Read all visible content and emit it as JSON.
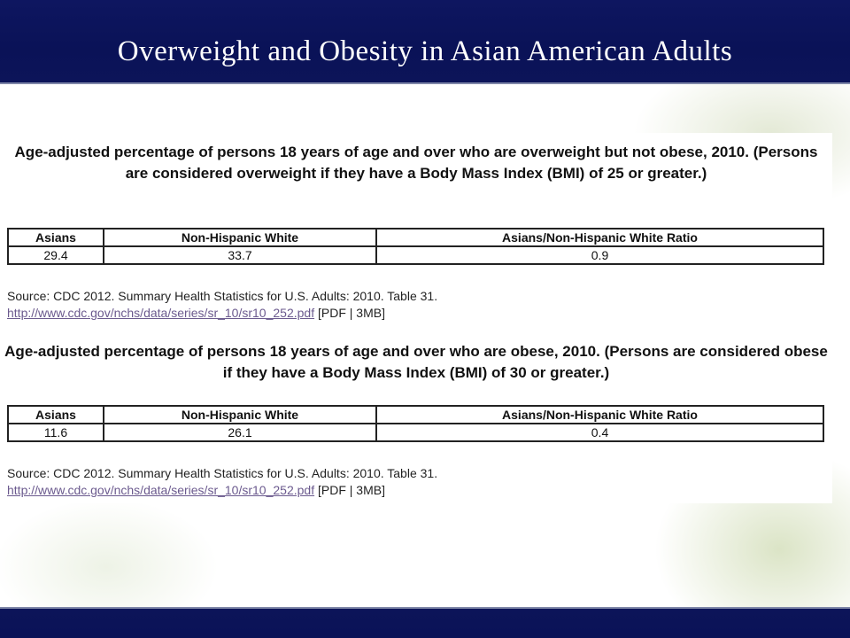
{
  "slide": {
    "title": "Overweight and Obesity in Asian American Adults"
  },
  "sections": [
    {
      "heading": "Age-adjusted percentage of persons 18 years of age and over who are overweight but not obese, 2010. (Persons are considered overweight if they have a Body Mass Index (BMI) of 25 or greater.)",
      "table": {
        "headers": [
          "Asians",
          "Non-Hispanic White",
          "Asians/Non-Hispanic White Ratio"
        ],
        "row": [
          "29.4",
          "33.7",
          "0.9"
        ]
      },
      "source_text": "Source:  CDC 2012. Summary Health Statistics for U.S. Adults: 2010. Table 31.",
      "link_text": "http://www.cdc.gov/nchs/data/series/sr_10/sr10_252.pdf",
      "link_suffix": " [PDF | 3MB]"
    },
    {
      "heading": "Age-adjusted percentage of persons 18 years of age and over who are obese, 2010. (Persons are considered obese if they have a Body Mass Index (BMI) of 30 or greater.)",
      "table": {
        "headers": [
          "Asians",
          "Non-Hispanic White",
          "Asians/Non-Hispanic White Ratio"
        ],
        "row": [
          "11.6",
          "26.1",
          "0.4"
        ]
      },
      "source_text": "Source:  CDC 2012. Summary Health Statistics for U.S. Adults: 2010. Table 31.",
      "link_text": "http://www.cdc.gov/nchs/data/series/sr_10/sr10_252.pdf",
      "link_suffix": " [PDF | 3MB]"
    }
  ],
  "colors": {
    "header_bg": "#0a1257",
    "title_text": "#ffffff",
    "link": "#6b5a8e"
  }
}
